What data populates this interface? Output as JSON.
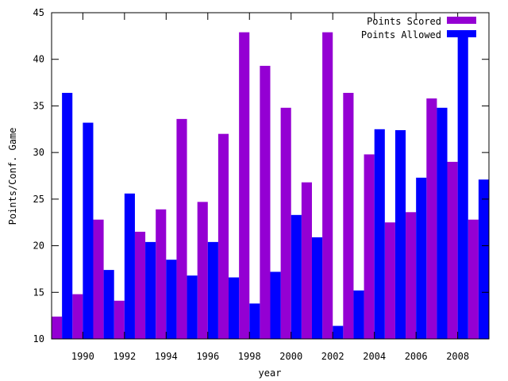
{
  "chart_data": {
    "type": "bar",
    "title": "",
    "xlabel": "year",
    "ylabel": "Points/Conf. Game",
    "ylim": [
      10,
      45
    ],
    "yticks": [
      10,
      15,
      20,
      25,
      30,
      35,
      40,
      45
    ],
    "x_tick_labels": [
      "1990",
      "1992",
      "1994",
      "1996",
      "1998",
      "2000",
      "2002",
      "2004",
      "2006",
      "2008"
    ],
    "categories": [
      1989,
      1990,
      1991,
      1992,
      1993,
      1994,
      1995,
      1996,
      1997,
      1998,
      1999,
      2000,
      2001,
      2002,
      2003,
      2004,
      2005,
      2006,
      2007,
      2008,
      2009
    ],
    "grid": false,
    "legend_position": "top-right",
    "series": [
      {
        "name": "Points Scored",
        "color": "#9400d3",
        "values": [
          12.4,
          14.8,
          22.8,
          14.1,
          21.5,
          23.9,
          33.6,
          24.7,
          32.0,
          42.9,
          39.3,
          34.8,
          26.8,
          42.9,
          36.4,
          29.8,
          22.5,
          23.6,
          35.8,
          29.0,
          22.8
        ]
      },
      {
        "name": "Points Allowed",
        "color": "#0000ff",
        "values": [
          36.4,
          33.2,
          17.4,
          25.6,
          20.4,
          18.5,
          16.8,
          20.4,
          16.6,
          13.8,
          17.2,
          23.3,
          20.9,
          11.4,
          15.2,
          32.5,
          32.4,
          27.3,
          34.8,
          42.6,
          27.1
        ]
      }
    ]
  }
}
